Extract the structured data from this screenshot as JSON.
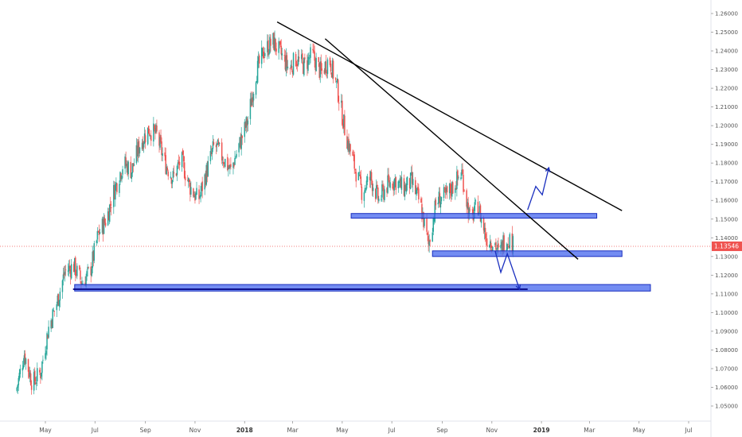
{
  "chart_data": {
    "type": "candlestick",
    "instrument_last_price": "1.13546",
    "last_price_value": 1.13546,
    "ylim": [
      1.045,
      1.265
    ],
    "y_ticks": [
      "1.26000",
      "1.25000",
      "1.24000",
      "1.23000",
      "1.22000",
      "1.21000",
      "1.20000",
      "1.19000",
      "1.18000",
      "1.17000",
      "1.16000",
      "1.15000",
      "1.14000",
      "1.13000",
      "1.12000",
      "1.11000",
      "1.10000",
      "1.09000",
      "1.08000",
      "1.07000",
      "1.06000",
      "1.05000"
    ],
    "y_tick_values": [
      1.26,
      1.25,
      1.24,
      1.23,
      1.22,
      1.21,
      1.2,
      1.19,
      1.18,
      1.17,
      1.16,
      1.15,
      1.14,
      1.13,
      1.12,
      1.11,
      1.1,
      1.09,
      1.08,
      1.07,
      1.06,
      1.05
    ],
    "x_ticks": [
      {
        "label": "May",
        "date": "2017-05-01"
      },
      {
        "label": "Jul",
        "date": "2017-07-01"
      },
      {
        "label": "Sep",
        "date": "2017-09-01"
      },
      {
        "label": "Nov",
        "date": "2017-11-01"
      },
      {
        "label": "2018",
        "date": "2018-01-01",
        "bold": true
      },
      {
        "label": "Mar",
        "date": "2018-03-01"
      },
      {
        "label": "May",
        "date": "2018-05-01"
      },
      {
        "label": "Jul",
        "date": "2018-07-01"
      },
      {
        "label": "Sep",
        "date": "2018-09-01"
      },
      {
        "label": "Nov",
        "date": "2018-11-01"
      },
      {
        "label": "2019",
        "date": "2019-01-01",
        "bold": true
      },
      {
        "label": "Mar",
        "date": "2019-03-01"
      },
      {
        "label": "May",
        "date": "2019-05-01"
      },
      {
        "label": "Jul",
        "date": "2019-07-01"
      }
    ],
    "xlim": [
      "2017-03-26",
      "2019-08-20"
    ],
    "price_path": [
      [
        "2017-03-26",
        1.058
      ],
      [
        "2017-04-05",
        1.078
      ],
      [
        "2017-04-15",
        1.062
      ],
      [
        "2017-04-25",
        1.068
      ],
      [
        "2017-05-05",
        1.092
      ],
      [
        "2017-05-15",
        1.105
      ],
      [
        "2017-05-25",
        1.122
      ],
      [
        "2017-06-05",
        1.125
      ],
      [
        "2017-06-15",
        1.116
      ],
      [
        "2017-06-25",
        1.122
      ],
      [
        "2017-07-05",
        1.142
      ],
      [
        "2017-07-15",
        1.15
      ],
      [
        "2017-07-25",
        1.166
      ],
      [
        "2017-08-05",
        1.18
      ],
      [
        "2017-08-15",
        1.176
      ],
      [
        "2017-08-25",
        1.19
      ],
      [
        "2017-09-05",
        1.198
      ],
      [
        "2017-09-15",
        1.195
      ],
      [
        "2017-09-25",
        1.18
      ],
      [
        "2017-10-05",
        1.172
      ],
      [
        "2017-10-15",
        1.182
      ],
      [
        "2017-10-25",
        1.168
      ],
      [
        "2017-11-05",
        1.16
      ],
      [
        "2017-11-15",
        1.175
      ],
      [
        "2017-11-25",
        1.19
      ],
      [
        "2017-12-05",
        1.183
      ],
      [
        "2017-12-15",
        1.176
      ],
      [
        "2017-12-25",
        1.189
      ],
      [
        "2018-01-05",
        1.203
      ],
      [
        "2018-01-15",
        1.228
      ],
      [
        "2018-01-25",
        1.24
      ],
      [
        "2018-02-05",
        1.245
      ],
      [
        "2018-02-15",
        1.238
      ],
      [
        "2018-02-25",
        1.23
      ],
      [
        "2018-03-05",
        1.236
      ],
      [
        "2018-03-15",
        1.232
      ],
      [
        "2018-03-25",
        1.238
      ],
      [
        "2018-04-05",
        1.228
      ],
      [
        "2018-04-15",
        1.236
      ],
      [
        "2018-04-25",
        1.22
      ],
      [
        "2018-05-05",
        1.196
      ],
      [
        "2018-05-15",
        1.18
      ],
      [
        "2018-05-25",
        1.165
      ],
      [
        "2018-06-05",
        1.172
      ],
      [
        "2018-06-15",
        1.16
      ],
      [
        "2018-06-25",
        1.168
      ],
      [
        "2018-07-05",
        1.171
      ],
      [
        "2018-07-15",
        1.166
      ],
      [
        "2018-07-25",
        1.17
      ],
      [
        "2018-08-05",
        1.158
      ],
      [
        "2018-08-15",
        1.136
      ],
      [
        "2018-08-25",
        1.16
      ],
      [
        "2018-09-05",
        1.162
      ],
      [
        "2018-09-15",
        1.168
      ],
      [
        "2018-09-25",
        1.175
      ],
      [
        "2018-10-05",
        1.15
      ],
      [
        "2018-10-15",
        1.157
      ],
      [
        "2018-10-25",
        1.14
      ],
      [
        "2018-11-05",
        1.137
      ],
      [
        "2018-11-10",
        1.13
      ],
      [
        "2018-11-15",
        1.138
      ],
      [
        "2018-11-22",
        1.14
      ],
      [
        "2018-11-27",
        1.136
      ]
    ],
    "candle_low_high": {
      "min_low": 1.056,
      "max_high": 1.2555
    },
    "trendlines": [
      {
        "from": [
          "2018-02-10",
          1.2555
        ],
        "to": [
          "2019-04-10",
          1.1545
        ],
        "color": "#000000"
      },
      {
        "from": [
          "2018-04-10",
          1.2465
        ],
        "to": [
          "2019-02-15",
          1.1285
        ],
        "color": "#000000"
      },
      {
        "from": [
          "2017-06-04",
          1.1125
        ],
        "to": [
          "2018-12-15",
          1.1125
        ],
        "color": "#000080"
      }
    ],
    "zones": [
      {
        "name": "resistance-zone",
        "from": [
          "2018-05-12",
          1.153
        ],
        "to": [
          "2019-03-10",
          1.1505
        ],
        "fill": "#4466ee",
        "border": "#1a2fbf"
      },
      {
        "name": "support-zone",
        "from": [
          "2018-08-20",
          1.133
        ],
        "to": [
          "2019-04-10",
          1.13
        ],
        "fill": "#4466ee",
        "border": "#1a2fbf"
      },
      {
        "name": "lower-support-zone",
        "from": [
          "2017-06-06",
          1.115
        ],
        "to": [
          "2019-05-15",
          1.1115
        ],
        "fill": "#4466ee",
        "border": "#1a2fbf"
      }
    ],
    "arrows": [
      {
        "points": [
          [
            "2018-12-15",
            1.155
          ],
          [
            "2018-12-25",
            1.1675
          ],
          [
            "2019-01-02",
            1.163
          ],
          [
            "2019-01-10",
            1.1775
          ]
        ],
        "color": "#1a2fbf"
      },
      {
        "points": [
          [
            "2018-11-05",
            1.133
          ],
          [
            "2018-11-12",
            1.1215
          ],
          [
            "2018-11-20",
            1.1315
          ],
          [
            "2018-12-05",
            1.1125
          ]
        ],
        "color": "#1a2fbf"
      }
    ],
    "colors": {
      "up": "#26a69a",
      "down": "#ef5350",
      "price_line": "#ef5350",
      "price_tag": "#ef5350",
      "zone": "#4466ee"
    },
    "grid": false
  }
}
